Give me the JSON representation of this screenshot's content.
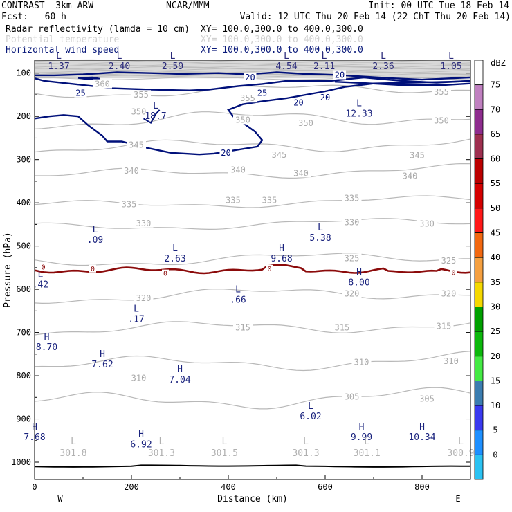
{
  "header": {
    "left_line1": "CONTRAST  3km ARW",
    "center_line1": "NCAR/MMM",
    "right_line1": "Init: 00 UTC Tue 18 Feb 14",
    "left_line2": "Fcst:   60 h",
    "right_line2": "Valid: 12 UTC Thu 20 Feb 14 (22 ChT Thu 20 Feb 14)",
    "field1_label": "Radar reflectivity (lamda = 10 cm)",
    "field1_xy": "XY= 100.0,300.0 to 400.0,300.0",
    "field2_label": "Potential temperature",
    "field2_xy": "XY= 100.0,300.0 to 400.0,300.0",
    "field3_label": "Horizontal wind speed",
    "field3_xy": "XY= 100.0,300.0 to 400.0,300.0"
  },
  "colors": {
    "wind": "#00107a",
    "theta": "#b8b8b8",
    "zero_line": "#8b0a0a",
    "hl_text": "#1a237e"
  },
  "chart_data": {
    "type": "contour",
    "xlabel": "Distance (km)",
    "ylabel": "Pressure (hPa)",
    "xlim": [
      0,
      900
    ],
    "ylim": [
      1040,
      70
    ],
    "x_ticks": [
      0,
      200,
      400,
      600,
      800
    ],
    "y_ticks": [
      100,
      200,
      300,
      400,
      500,
      600,
      700,
      800,
      900,
      1000
    ],
    "x_end_labels": {
      "left": "W",
      "right": "E"
    },
    "legend": {
      "title": "dBZ",
      "levels": [
        0,
        5,
        10,
        15,
        20,
        25,
        30,
        35,
        40,
        45,
        50,
        55,
        60,
        65,
        70,
        75
      ],
      "colors": [
        "#ffffff",
        "#7ff6f6",
        "#2bc2f2",
        "#1e90ff",
        "#3a3af0",
        "#3b7db0",
        "#44ea44",
        "#0cb80c",
        "#00a000",
        "#f5d800",
        "#f5a040",
        "#f26810",
        "#ff1818",
        "#d40000",
        "#bb0000",
        "#9e2f4f",
        "#8e2c8e",
        "#c080c0",
        "#ffffff"
      ],
      "band_levels": [
        -5,
        0,
        5,
        10,
        15,
        20,
        25,
        30,
        35,
        40,
        45,
        50,
        55,
        60,
        65,
        70,
        75,
        80
      ]
    },
    "theta_labels": [
      {
        "x": 140,
        "p": 127,
        "v": "360"
      },
      {
        "x": 220,
        "p": 152,
        "v": "355"
      },
      {
        "x": 440,
        "p": 160,
        "v": "355"
      },
      {
        "x": 840,
        "p": 145,
        "v": "355"
      },
      {
        "x": 215,
        "p": 191,
        "v": "350"
      },
      {
        "x": 430,
        "p": 210,
        "v": "350"
      },
      {
        "x": 560,
        "p": 217,
        "v": "350"
      },
      {
        "x": 840,
        "p": 212,
        "v": "350"
      },
      {
        "x": 210,
        "p": 268,
        "v": "345"
      },
      {
        "x": 505,
        "p": 291,
        "v": "345"
      },
      {
        "x": 790,
        "p": 292,
        "v": "345"
      },
      {
        "x": 200,
        "p": 328,
        "v": "340"
      },
      {
        "x": 420,
        "p": 325,
        "v": "340"
      },
      {
        "x": 550,
        "p": 333,
        "v": "340"
      },
      {
        "x": 775,
        "p": 340,
        "v": "340"
      },
      {
        "x": 195,
        "p": 405,
        "v": "335"
      },
      {
        "x": 410,
        "p": 396,
        "v": "335"
      },
      {
        "x": 485,
        "p": 396,
        "v": "335"
      },
      {
        "x": 655,
        "p": 391,
        "v": "335"
      },
      {
        "x": 225,
        "p": 449,
        "v": "330"
      },
      {
        "x": 655,
        "p": 447,
        "v": "330"
      },
      {
        "x": 810,
        "p": 450,
        "v": "330"
      },
      {
        "x": 655,
        "p": 530,
        "v": "325"
      },
      {
        "x": 855,
        "p": 536,
        "v": "325"
      },
      {
        "x": 225,
        "p": 622,
        "v": "320"
      },
      {
        "x": 655,
        "p": 612,
        "v": "320"
      },
      {
        "x": 855,
        "p": 612,
        "v": "320"
      },
      {
        "x": 430,
        "p": 690,
        "v": "315"
      },
      {
        "x": 635,
        "p": 690,
        "v": "315"
      },
      {
        "x": 845,
        "p": 687,
        "v": "315"
      },
      {
        "x": 675,
        "p": 770,
        "v": "310"
      },
      {
        "x": 860,
        "p": 768,
        "v": "310"
      },
      {
        "x": 215,
        "p": 807,
        "v": "310"
      },
      {
        "x": 655,
        "p": 850,
        "v": "305"
      },
      {
        "x": 810,
        "p": 855,
        "v": "305"
      }
    ],
    "extrema": [
      {
        "x": 50,
        "p": 70,
        "v": "1.37",
        "lbl": "L"
      },
      {
        "x": 175,
        "p": 70,
        "v": "2.40",
        "lbl": "L"
      },
      {
        "x": 285,
        "p": 70,
        "v": "2.59",
        "lbl": "L"
      },
      {
        "x": 520,
        "p": 70,
        "v": "4.54",
        "lbl": "L"
      },
      {
        "x": 598,
        "p": 70,
        "v": "2.11",
        "lbl": "L"
      },
      {
        "x": 720,
        "p": 70,
        "v": "2.36",
        "lbl": "L"
      },
      {
        "x": 860,
        "p": 70,
        "v": "1.05",
        "lbl": "L"
      },
      {
        "x": 250,
        "p": 185,
        "v": "18.7",
        "lbl": "L"
      },
      {
        "x": 670,
        "p": 180,
        "v": "12.33",
        "lbl": "L"
      },
      {
        "x": 125,
        "p": 472,
        "v": ".09",
        "lbl": "L"
      },
      {
        "x": 290,
        "p": 515,
        "v": "2.63",
        "lbl": "L"
      },
      {
        "x": 590,
        "p": 467,
        "v": "5.38",
        "lbl": "L"
      },
      {
        "x": 510,
        "p": 515,
        "v": "9.68",
        "lbl": "H"
      },
      {
        "x": 12,
        "p": 575,
        "v": ".42",
        "lbl": "L"
      },
      {
        "x": 670,
        "p": 570,
        "v": "8.00",
        "lbl": "H"
      },
      {
        "x": 420,
        "p": 610,
        "v": ".66",
        "lbl": "L"
      },
      {
        "x": 210,
        "p": 655,
        "v": ".17",
        "lbl": "L"
      },
      {
        "x": 25,
        "p": 720,
        "v": "8.70",
        "lbl": "H"
      },
      {
        "x": 140,
        "p": 760,
        "v": "7.62",
        "lbl": "H"
      },
      {
        "x": 300,
        "p": 795,
        "v": "7.04",
        "lbl": "H"
      },
      {
        "x": 570,
        "p": 880,
        "v": "6.02",
        "lbl": "L"
      },
      {
        "x": 0,
        "p": 928,
        "v": "7.68",
        "lbl": "H"
      },
      {
        "x": 220,
        "p": 945,
        "v": "6.92",
        "lbl": "H"
      },
      {
        "x": 675,
        "p": 928,
        "v": "9.99",
        "lbl": "H"
      },
      {
        "x": 800,
        "p": 928,
        "v": "10.34",
        "lbl": "H"
      }
    ],
    "surface_lows": [
      {
        "x": 80,
        "v": "301.8"
      },
      {
        "x": 262,
        "v": "301.3"
      },
      {
        "x": 392,
        "v": "301.5"
      },
      {
        "x": 560,
        "v": "301.3"
      },
      {
        "x": 686,
        "v": "301.1"
      },
      {
        "x": 880,
        "v": "300.9"
      }
    ],
    "wind_labels": [
      {
        "x": 95,
        "p": 148,
        "v": "25"
      },
      {
        "x": 470,
        "p": 148,
        "v": "25"
      },
      {
        "x": 445,
        "p": 112,
        "v": "20"
      },
      {
        "x": 630,
        "p": 106,
        "v": "20"
      },
      {
        "x": 600,
        "p": 158,
        "v": "20"
      },
      {
        "x": 545,
        "p": 170,
        "v": "20"
      },
      {
        "x": 395,
        "p": 286,
        "v": "20"
      }
    ],
    "zero_labels": [
      {
        "x": 18,
        "p": 549,
        "v": "0"
      },
      {
        "x": 120,
        "p": 553,
        "v": "0"
      },
      {
        "x": 270,
        "p": 564,
        "v": "0"
      },
      {
        "x": 485,
        "p": 553,
        "v": "0"
      },
      {
        "x": 865,
        "p": 562,
        "v": "0"
      }
    ]
  }
}
